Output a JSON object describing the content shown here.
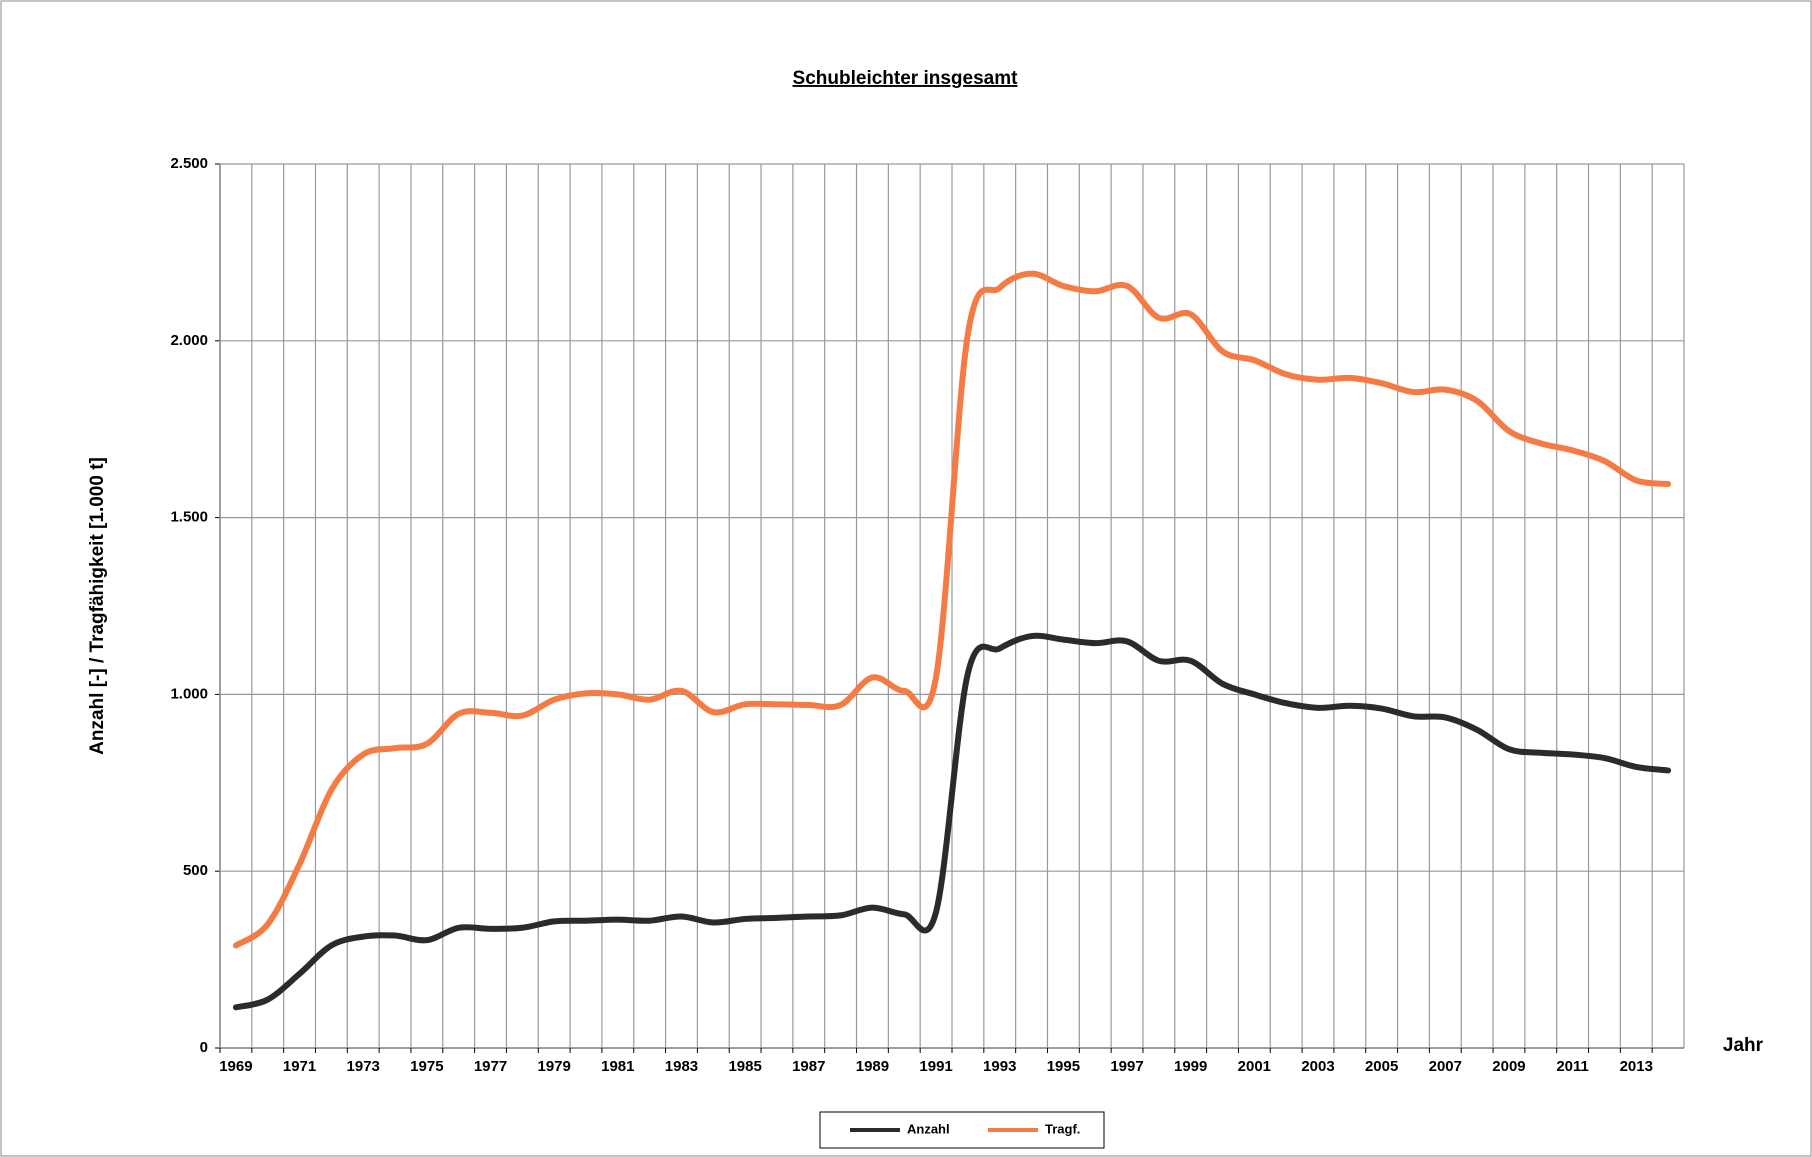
{
  "chart_data": {
    "type": "line",
    "title": "Schubleichter insgesamt",
    "y_label": "Anzahl [-] / Tragfähigkeit [1.000 t]",
    "x_label": "Jahr",
    "categories": [
      "1969",
      null,
      "1971",
      null,
      "1973",
      null,
      "1975",
      null,
      "1977",
      null,
      "1979",
      null,
      "1981",
      null,
      "1983",
      null,
      "1985",
      null,
      "1987",
      null,
      "1989",
      null,
      "1991",
      null,
      "1993",
      null,
      "1995",
      null,
      "1997",
      null,
      "1999",
      null,
      "2001",
      null,
      "2003",
      null,
      "2005",
      null,
      "2007",
      null,
      "2009",
      null,
      "2011",
      null,
      "2013",
      null
    ],
    "series": [
      {
        "name": "Anzahl",
        "color": "#2b2b2b",
        "values": [
          115,
          137,
          210,
          290,
          315,
          318,
          305,
          340,
          337,
          340,
          358,
          360,
          363,
          360,
          372,
          355,
          365,
          368,
          372,
          375,
          397,
          378,
          385,
          1060,
          1130,
          1165,
          1155,
          1145,
          1150,
          1095,
          1095,
          1030,
          1000,
          975,
          962,
          968,
          960,
          938,
          935,
          900,
          845,
          835,
          830,
          820,
          795,
          785
        ]
      },
      {
        "name": "Tragf.",
        "color": "#f47b43",
        "values": [
          290,
          350,
          520,
          730,
          830,
          848,
          860,
          945,
          948,
          940,
          985,
          1003,
          1000,
          985,
          1010,
          950,
          972,
          972,
          970,
          970,
          1048,
          1010,
          1050,
          2020,
          2150,
          2190,
          2155,
          2140,
          2155,
          2065,
          2075,
          1970,
          1945,
          1905,
          1890,
          1895,
          1880,
          1855,
          1862,
          1830,
          1745,
          1710,
          1690,
          1660,
          1605,
          1595
        ]
      }
    ],
    "ylim": [
      0,
      2500
    ],
    "yticks": [
      0,
      500,
      {
        "value": 1000,
        "label": "1.000"
      },
      {
        "value": 1500,
        "label": "1.500"
      },
      {
        "value": 2000,
        "label": "2.000"
      },
      {
        "value": 2500,
        "label": "2.500"
      }
    ],
    "grid": true,
    "legend": "bottom"
  }
}
